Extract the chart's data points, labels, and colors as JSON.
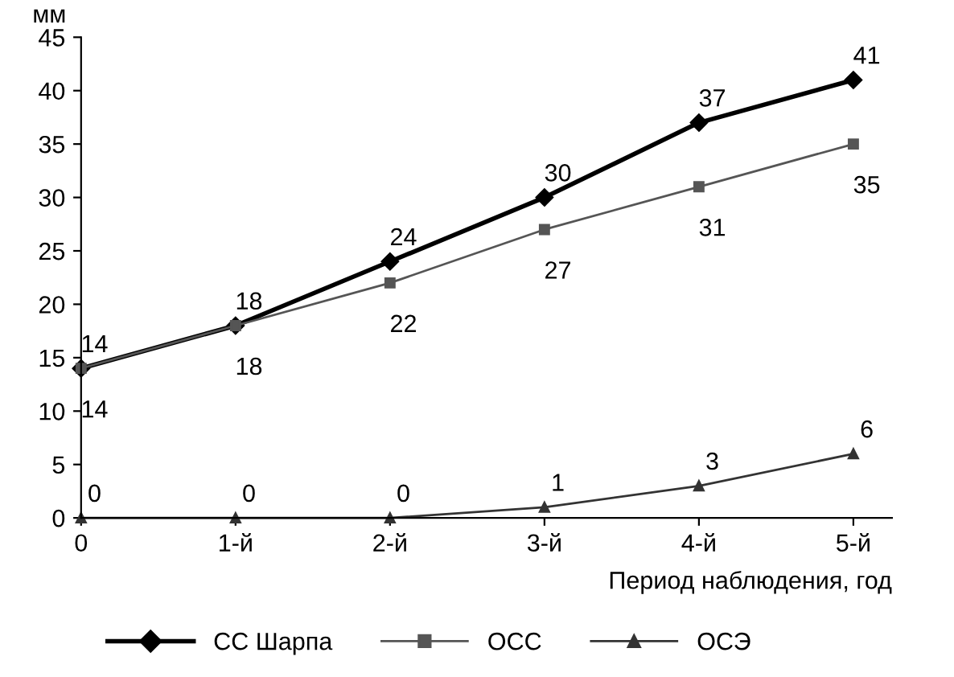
{
  "chart_data": {
    "type": "line",
    "ylabel": "мм",
    "xlabel": "Период наблюдения, год",
    "categories": [
      "0",
      "1-й",
      "2-й",
      "3-й",
      "4-й",
      "5-й"
    ],
    "series": [
      {
        "name": "СС Шарпа",
        "color": "#000000",
        "marker": "diamond",
        "values": [
          14,
          18,
          24,
          30,
          37,
          41
        ]
      },
      {
        "name": "ОСС",
        "color": "#555555",
        "marker": "square",
        "values": [
          14,
          18,
          22,
          27,
          31,
          35
        ]
      },
      {
        "name": "ОСЭ",
        "color": "#333333",
        "marker": "triangle",
        "values": [
          0,
          0,
          0,
          1,
          3,
          6
        ]
      }
    ],
    "ylim": [
      0,
      45
    ],
    "yticks": [
      0,
      5,
      10,
      15,
      20,
      25,
      30,
      35,
      40,
      45
    ],
    "data_labels": true,
    "grid": false,
    "legend": "bottom",
    "line_style": "solid"
  }
}
